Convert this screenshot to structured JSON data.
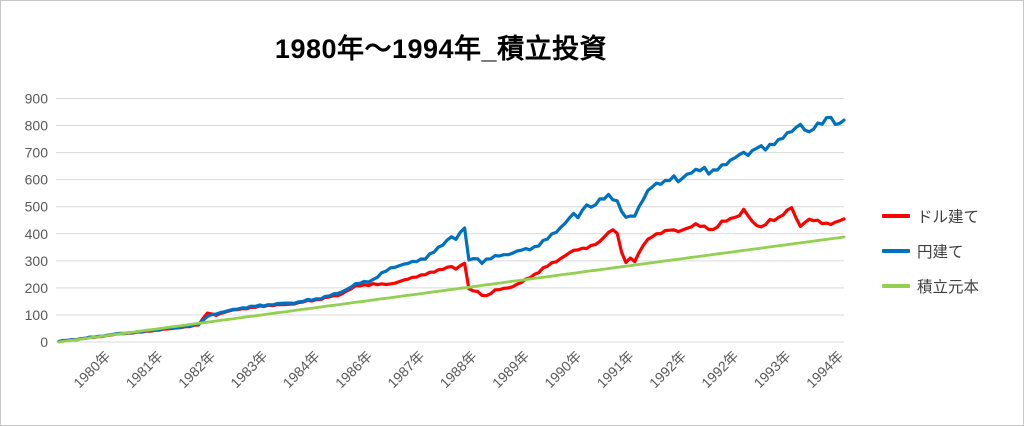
{
  "chart_data": {
    "type": "line",
    "title": "1980年〜1994年_積立投資",
    "xlabel": "",
    "ylabel": "",
    "x_range": [
      0,
      180
    ],
    "x_unit": "months_since_1980_01",
    "ylim": [
      0,
      900
    ],
    "y_ticks": [
      0,
      100,
      200,
      300,
      400,
      500,
      600,
      700,
      800,
      900
    ],
    "x_tick_labels": [
      "1980年",
      "1981年",
      "1982年",
      "1983年",
      "1984年",
      "1986年",
      "1987年",
      "1988年",
      "1989年",
      "1990年",
      "1991年",
      "1992年",
      "1992年",
      "1993年",
      "1994年"
    ],
    "grid": "horizontal",
    "legend_position": "right",
    "colors": {
      "dollar": "#ff0000",
      "yen": "#0070c0",
      "principal": "#92d050"
    },
    "series": [
      {
        "key": "dollar-denominated",
        "name": "ドル建て",
        "color": "#ff0000",
        "volatility": 7,
        "points": [
          [
            0,
            2
          ],
          [
            2,
            6
          ],
          [
            4,
            10
          ],
          [
            6,
            14
          ],
          [
            8,
            17
          ],
          [
            10,
            22
          ],
          [
            12,
            26
          ],
          [
            14,
            30
          ],
          [
            16,
            33
          ],
          [
            18,
            36
          ],
          [
            20,
            39
          ],
          [
            22,
            43
          ],
          [
            24,
            47
          ],
          [
            26,
            50
          ],
          [
            28,
            54
          ],
          [
            30,
            58
          ],
          [
            32,
            64
          ],
          [
            33,
            85
          ],
          [
            34,
            108
          ],
          [
            35,
            103
          ],
          [
            36,
            100
          ],
          [
            38,
            110
          ],
          [
            40,
            118
          ],
          [
            42,
            123
          ],
          [
            44,
            126
          ],
          [
            46,
            131
          ],
          [
            48,
            136
          ],
          [
            50,
            136
          ],
          [
            52,
            138
          ],
          [
            54,
            143
          ],
          [
            56,
            148
          ],
          [
            58,
            153
          ],
          [
            60,
            160
          ],
          [
            62,
            166
          ],
          [
            64,
            172
          ],
          [
            66,
            190
          ],
          [
            68,
            205
          ],
          [
            70,
            210
          ],
          [
            72,
            215
          ],
          [
            74,
            212
          ],
          [
            76,
            214
          ],
          [
            78,
            224
          ],
          [
            80,
            232
          ],
          [
            82,
            242
          ],
          [
            84,
            251
          ],
          [
            86,
            260
          ],
          [
            88,
            270
          ],
          [
            90,
            280
          ],
          [
            91,
            270
          ],
          [
            92,
            282
          ],
          [
            93,
            292
          ],
          [
            94,
            195
          ],
          [
            95,
            190
          ],
          [
            96,
            185
          ],
          [
            97,
            175
          ],
          [
            98,
            170
          ],
          [
            99,
            180
          ],
          [
            100,
            190
          ],
          [
            102,
            198
          ],
          [
            104,
            205
          ],
          [
            106,
            219
          ],
          [
            108,
            240
          ],
          [
            110,
            260
          ],
          [
            112,
            280
          ],
          [
            114,
            300
          ],
          [
            116,
            320
          ],
          [
            118,
            335
          ],
          [
            120,
            347
          ],
          [
            122,
            355
          ],
          [
            124,
            366
          ],
          [
            125,
            390
          ],
          [
            127,
            420
          ],
          [
            128,
            400
          ],
          [
            129,
            330
          ],
          [
            130,
            292
          ],
          [
            131,
            310
          ],
          [
            132,
            300
          ],
          [
            133,
            330
          ],
          [
            134,
            360
          ],
          [
            136,
            390
          ],
          [
            138,
            405
          ],
          [
            140,
            415
          ],
          [
            142,
            408
          ],
          [
            144,
            420
          ],
          [
            146,
            435
          ],
          [
            148,
            425
          ],
          [
            150,
            412
          ],
          [
            152,
            445
          ],
          [
            154,
            455
          ],
          [
            156,
            465
          ],
          [
            157,
            490
          ],
          [
            158,
            470
          ],
          [
            159,
            445
          ],
          [
            161,
            420
          ],
          [
            163,
            450
          ],
          [
            165,
            460
          ],
          [
            166,
            470
          ],
          [
            168,
            495
          ],
          [
            169,
            460
          ],
          [
            170,
            430
          ],
          [
            171,
            445
          ],
          [
            172,
            450
          ],
          [
            174,
            445
          ],
          [
            176,
            440
          ],
          [
            178,
            438
          ],
          [
            180,
            455
          ]
        ]
      },
      {
        "key": "yen-denominated",
        "name": "円建て",
        "color": "#0070c0",
        "volatility": 8,
        "points": [
          [
            0,
            2
          ],
          [
            2,
            6
          ],
          [
            4,
            10
          ],
          [
            6,
            14
          ],
          [
            8,
            18
          ],
          [
            10,
            23
          ],
          [
            12,
            27
          ],
          [
            14,
            31
          ],
          [
            16,
            34
          ],
          [
            18,
            37
          ],
          [
            20,
            41
          ],
          [
            22,
            45
          ],
          [
            24,
            49
          ],
          [
            26,
            52
          ],
          [
            28,
            55
          ],
          [
            30,
            60
          ],
          [
            32,
            66
          ],
          [
            33,
            78
          ],
          [
            34,
            95
          ],
          [
            36,
            105
          ],
          [
            38,
            112
          ],
          [
            40,
            120
          ],
          [
            42,
            126
          ],
          [
            44,
            130
          ],
          [
            46,
            134
          ],
          [
            48,
            138
          ],
          [
            50,
            140
          ],
          [
            52,
            143
          ],
          [
            54,
            146
          ],
          [
            56,
            150
          ],
          [
            58,
            156
          ],
          [
            60,
            163
          ],
          [
            62,
            170
          ],
          [
            64,
            180
          ],
          [
            66,
            196
          ],
          [
            68,
            212
          ],
          [
            70,
            222
          ],
          [
            72,
            230
          ],
          [
            74,
            252
          ],
          [
            76,
            273
          ],
          [
            78,
            283
          ],
          [
            80,
            290
          ],
          [
            82,
            300
          ],
          [
            84,
            310
          ],
          [
            86,
            335
          ],
          [
            88,
            360
          ],
          [
            90,
            390
          ],
          [
            91,
            380
          ],
          [
            92,
            405
          ],
          [
            93,
            423
          ],
          [
            94,
            300
          ],
          [
            95,
            310
          ],
          [
            96,
            305
          ],
          [
            97,
            295
          ],
          [
            98,
            305
          ],
          [
            100,
            315
          ],
          [
            102,
            322
          ],
          [
            104,
            330
          ],
          [
            106,
            338
          ],
          [
            108,
            345
          ],
          [
            110,
            360
          ],
          [
            112,
            380
          ],
          [
            114,
            410
          ],
          [
            116,
            440
          ],
          [
            118,
            470
          ],
          [
            119,
            460
          ],
          [
            121,
            515
          ],
          [
            122,
            495
          ],
          [
            124,
            520
          ],
          [
            126,
            545
          ],
          [
            128,
            520
          ],
          [
            129,
            480
          ],
          [
            130,
            458
          ],
          [
            131,
            465
          ],
          [
            132,
            470
          ],
          [
            133,
            500
          ],
          [
            134,
            530
          ],
          [
            136,
            575
          ],
          [
            138,
            590
          ],
          [
            140,
            600
          ],
          [
            141,
            610
          ],
          [
            142,
            592
          ],
          [
            144,
            620
          ],
          [
            146,
            635
          ],
          [
            148,
            640
          ],
          [
            149,
            625
          ],
          [
            150,
            630
          ],
          [
            152,
            652
          ],
          [
            154,
            670
          ],
          [
            156,
            690
          ],
          [
            157,
            700
          ],
          [
            158,
            695
          ],
          [
            160,
            720
          ],
          [
            162,
            712
          ],
          [
            164,
            740
          ],
          [
            166,
            755
          ],
          [
            168,
            775
          ],
          [
            169,
            795
          ],
          [
            170,
            810
          ],
          [
            171,
            790
          ],
          [
            172,
            770
          ],
          [
            174,
            800
          ],
          [
            175,
            815
          ],
          [
            176,
            830
          ],
          [
            177,
            840
          ],
          [
            178,
            795
          ],
          [
            179,
            805
          ],
          [
            180,
            820
          ]
        ]
      },
      {
        "key": "principal",
        "name": "積立元本",
        "color": "#92d050",
        "volatility": 0,
        "points": [
          [
            0,
            0
          ],
          [
            180,
            388
          ]
        ]
      }
    ]
  }
}
